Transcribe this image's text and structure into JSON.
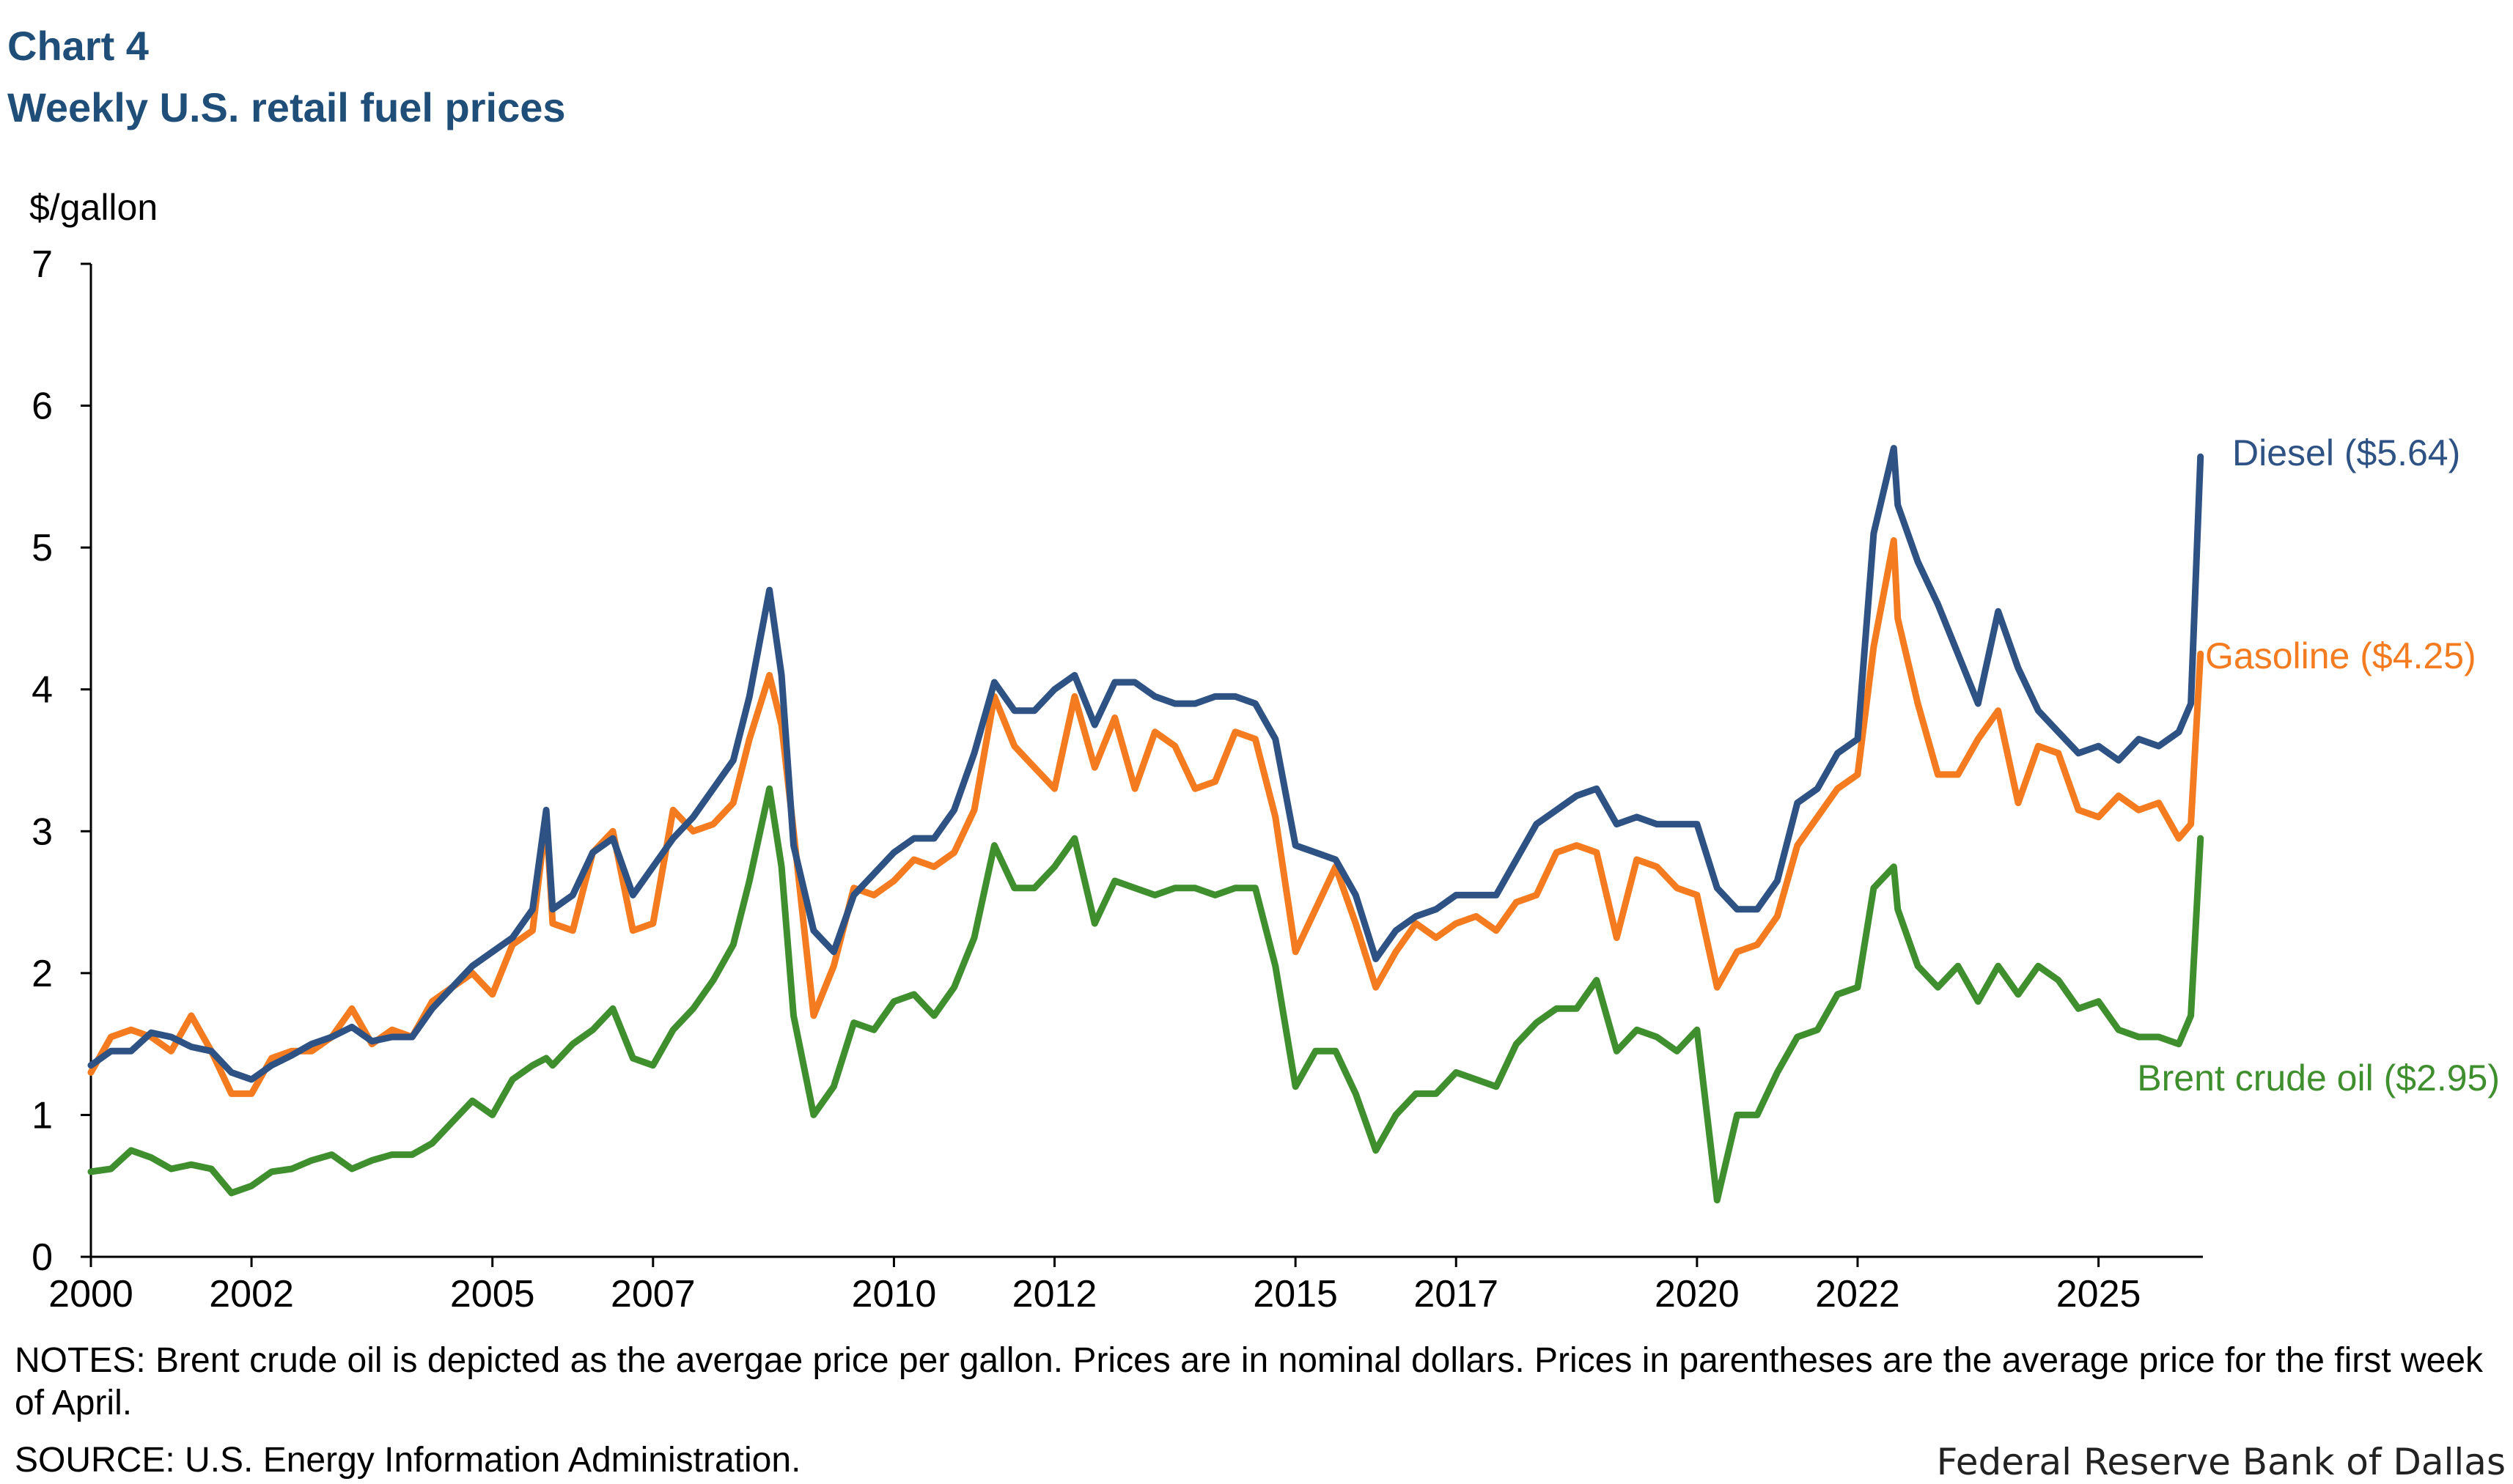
{
  "header": {
    "chart_number": "Chart 4",
    "title": "Weekly U.S. retail fuel prices"
  },
  "chart_data": {
    "type": "line",
    "ylabel": "$/gallon",
    "ylim": [
      0,
      7
    ],
    "yticks": [
      "0",
      "1",
      "2",
      "3",
      "4",
      "5",
      "6",
      "7"
    ],
    "xlim": [
      2000,
      2026.3
    ],
    "xticks": [
      "2000",
      "2002",
      "2005",
      "2007",
      "2010",
      "2012",
      "2015",
      "2017",
      "2020",
      "2022",
      "2025"
    ],
    "grid": false,
    "series": [
      {
        "name": "Diesel ($5.64)",
        "color": "#2e5283",
        "x": [
          2000,
          2000.25,
          2000.5,
          2000.75,
          2001,
          2001.25,
          2001.5,
          2001.75,
          2002,
          2002.25,
          2002.5,
          2002.75,
          2003,
          2003.25,
          2003.5,
          2003.75,
          2004,
          2004.25,
          2004.5,
          2004.75,
          2005,
          2005.25,
          2005.5,
          2005.67,
          2005.75,
          2006,
          2006.25,
          2006.5,
          2006.75,
          2007,
          2007.25,
          2007.5,
          2007.75,
          2008,
          2008.2,
          2008.45,
          2008.6,
          2008.75,
          2009,
          2009.25,
          2009.5,
          2009.75,
          2010,
          2010.25,
          2010.5,
          2010.75,
          2011,
          2011.25,
          2011.5,
          2011.75,
          2012,
          2012.25,
          2012.5,
          2012.75,
          2013,
          2013.25,
          2013.5,
          2013.75,
          2014,
          2014.25,
          2014.5,
          2014.75,
          2015,
          2015.25,
          2015.5,
          2015.75,
          2016,
          2016.25,
          2016.5,
          2016.75,
          2017,
          2017.25,
          2017.5,
          2017.75,
          2018,
          2018.25,
          2018.5,
          2018.75,
          2019,
          2019.25,
          2019.5,
          2019.75,
          2020,
          2020.25,
          2020.5,
          2020.75,
          2021,
          2021.25,
          2021.5,
          2021.75,
          2022,
          2022.2,
          2022.45,
          2022.5,
          2022.75,
          2023,
          2023.25,
          2023.5,
          2023.75,
          2024,
          2024.25,
          2024.5,
          2024.75,
          2025,
          2025.25,
          2025.5,
          2025.75,
          2026,
          2026.15,
          2026.27
        ],
        "values": [
          1.35,
          1.45,
          1.45,
          1.58,
          1.55,
          1.48,
          1.45,
          1.3,
          1.25,
          1.35,
          1.42,
          1.5,
          1.55,
          1.62,
          1.52,
          1.55,
          1.55,
          1.75,
          1.9,
          2.05,
          2.15,
          2.25,
          2.45,
          3.15,
          2.45,
          2.55,
          2.85,
          2.95,
          2.55,
          2.75,
          2.95,
          3.1,
          3.3,
          3.5,
          3.95,
          4.7,
          4.1,
          2.9,
          2.3,
          2.15,
          2.55,
          2.7,
          2.85,
          2.95,
          2.95,
          3.15,
          3.55,
          4.05,
          3.85,
          3.85,
          4.0,
          4.1,
          3.75,
          4.05,
          4.05,
          3.95,
          3.9,
          3.9,
          3.95,
          3.95,
          3.9,
          3.65,
          2.9,
          2.85,
          2.8,
          2.55,
          2.1,
          2.3,
          2.4,
          2.45,
          2.55,
          2.55,
          2.55,
          2.8,
          3.05,
          3.15,
          3.25,
          3.3,
          3.05,
          3.1,
          3.05,
          3.05,
          3.05,
          2.6,
          2.45,
          2.45,
          2.65,
          3.2,
          3.3,
          3.55,
          3.65,
          5.1,
          5.7,
          5.3,
          4.9,
          4.6,
          4.25,
          3.9,
          4.55,
          4.15,
          3.85,
          3.7,
          3.55,
          3.6,
          3.5,
          3.65,
          3.6,
          3.7,
          3.9,
          5.64
        ]
      },
      {
        "name": "Gasoline ($4.25)",
        "color": "#f47b20",
        "x": [
          2000,
          2000.25,
          2000.5,
          2000.75,
          2001,
          2001.25,
          2001.5,
          2001.75,
          2002,
          2002.25,
          2002.5,
          2002.75,
          2003,
          2003.25,
          2003.5,
          2003.75,
          2004,
          2004.25,
          2004.5,
          2004.75,
          2005,
          2005.25,
          2005.5,
          2005.67,
          2005.75,
          2006,
          2006.25,
          2006.5,
          2006.75,
          2007,
          2007.25,
          2007.5,
          2007.75,
          2008,
          2008.2,
          2008.45,
          2008.6,
          2008.75,
          2009,
          2009.25,
          2009.5,
          2009.75,
          2010,
          2010.25,
          2010.5,
          2010.75,
          2011,
          2011.25,
          2011.5,
          2011.75,
          2012,
          2012.25,
          2012.5,
          2012.75,
          2013,
          2013.25,
          2013.5,
          2013.75,
          2014,
          2014.25,
          2014.5,
          2014.75,
          2015,
          2015.25,
          2015.5,
          2015.75,
          2016,
          2016.25,
          2016.5,
          2016.75,
          2017,
          2017.25,
          2017.5,
          2017.75,
          2018,
          2018.25,
          2018.5,
          2018.75,
          2019,
          2019.25,
          2019.5,
          2019.75,
          2020,
          2020.25,
          2020.5,
          2020.75,
          2021,
          2021.25,
          2021.5,
          2021.75,
          2022,
          2022.2,
          2022.45,
          2022.5,
          2022.75,
          2023,
          2023.25,
          2023.5,
          2023.75,
          2024,
          2024.25,
          2024.5,
          2024.75,
          2025,
          2025.25,
          2025.5,
          2025.75,
          2026,
          2026.15,
          2026.27
        ],
        "values": [
          1.3,
          1.55,
          1.6,
          1.55,
          1.45,
          1.7,
          1.45,
          1.15,
          1.15,
          1.4,
          1.45,
          1.45,
          1.55,
          1.75,
          1.5,
          1.6,
          1.55,
          1.8,
          1.9,
          2.0,
          1.85,
          2.2,
          2.3,
          3.1,
          2.35,
          2.3,
          2.85,
          3.0,
          2.3,
          2.35,
          3.15,
          3.0,
          3.05,
          3.2,
          3.65,
          4.1,
          3.75,
          3.0,
          1.7,
          2.05,
          2.6,
          2.55,
          2.65,
          2.8,
          2.75,
          2.85,
          3.15,
          3.95,
          3.6,
          3.45,
          3.3,
          3.95,
          3.45,
          3.8,
          3.3,
          3.7,
          3.6,
          3.3,
          3.35,
          3.7,
          3.65,
          3.1,
          2.15,
          2.45,
          2.75,
          2.35,
          1.9,
          2.15,
          2.35,
          2.25,
          2.35,
          2.4,
          2.3,
          2.5,
          2.55,
          2.85,
          2.9,
          2.85,
          2.25,
          2.8,
          2.75,
          2.6,
          2.55,
          1.9,
          2.15,
          2.2,
          2.4,
          2.9,
          3.1,
          3.3,
          3.4,
          4.3,
          5.05,
          4.5,
          3.9,
          3.4,
          3.4,
          3.65,
          3.85,
          3.2,
          3.6,
          3.55,
          3.15,
          3.1,
          3.25,
          3.15,
          3.2,
          2.95,
          3.05,
          4.25
        ]
      },
      {
        "name": "Brent crude oil ($2.95)",
        "color": "#3f8f2f",
        "x": [
          2000,
          2000.25,
          2000.5,
          2000.75,
          2001,
          2001.25,
          2001.5,
          2001.75,
          2002,
          2002.25,
          2002.5,
          2002.75,
          2003,
          2003.25,
          2003.5,
          2003.75,
          2004,
          2004.25,
          2004.5,
          2004.75,
          2005,
          2005.25,
          2005.5,
          2005.67,
          2005.75,
          2006,
          2006.25,
          2006.5,
          2006.75,
          2007,
          2007.25,
          2007.5,
          2007.75,
          2008,
          2008.2,
          2008.45,
          2008.6,
          2008.75,
          2009,
          2009.25,
          2009.5,
          2009.75,
          2010,
          2010.25,
          2010.5,
          2010.75,
          2011,
          2011.25,
          2011.5,
          2011.75,
          2012,
          2012.25,
          2012.5,
          2012.75,
          2013,
          2013.25,
          2013.5,
          2013.75,
          2014,
          2014.25,
          2014.5,
          2014.75,
          2015,
          2015.25,
          2015.5,
          2015.75,
          2016,
          2016.25,
          2016.5,
          2016.75,
          2017,
          2017.25,
          2017.5,
          2017.75,
          2018,
          2018.25,
          2018.5,
          2018.75,
          2019,
          2019.25,
          2019.5,
          2019.75,
          2020,
          2020.25,
          2020.5,
          2020.75,
          2021,
          2021.25,
          2021.5,
          2021.75,
          2022,
          2022.2,
          2022.45,
          2022.5,
          2022.75,
          2023,
          2023.25,
          2023.5,
          2023.75,
          2024,
          2024.25,
          2024.5,
          2024.75,
          2025,
          2025.25,
          2025.5,
          2025.75,
          2026,
          2026.15,
          2026.27
        ],
        "values": [
          0.6,
          0.62,
          0.75,
          0.7,
          0.62,
          0.65,
          0.62,
          0.45,
          0.5,
          0.6,
          0.62,
          0.68,
          0.72,
          0.62,
          0.68,
          0.72,
          0.72,
          0.8,
          0.95,
          1.1,
          1.0,
          1.25,
          1.35,
          1.4,
          1.35,
          1.5,
          1.6,
          1.75,
          1.4,
          1.35,
          1.6,
          1.75,
          1.95,
          2.2,
          2.65,
          3.3,
          2.75,
          1.7,
          1.0,
          1.2,
          1.65,
          1.6,
          1.8,
          1.85,
          1.7,
          1.9,
          2.25,
          2.9,
          2.6,
          2.6,
          2.75,
          2.95,
          2.35,
          2.65,
          2.6,
          2.55,
          2.6,
          2.6,
          2.55,
          2.6,
          2.6,
          2.05,
          1.2,
          1.45,
          1.45,
          1.15,
          0.75,
          1.0,
          1.15,
          1.15,
          1.3,
          1.25,
          1.2,
          1.5,
          1.65,
          1.75,
          1.75,
          1.95,
          1.45,
          1.6,
          1.55,
          1.45,
          1.6,
          0.4,
          1.0,
          1.0,
          1.3,
          1.55,
          1.6,
          1.85,
          1.9,
          2.6,
          2.75,
          2.45,
          2.05,
          1.9,
          2.05,
          1.8,
          2.05,
          1.85,
          2.05,
          1.95,
          1.75,
          1.8,
          1.6,
          1.55,
          1.55,
          1.5,
          1.7,
          2.95
        ]
      }
    ]
  },
  "footer": {
    "notes": "NOTES: Brent crude oil is depicted as the avergae price per gallon. Prices are in nominal dollars. Prices in parentheses are the average price for the first week of April.",
    "source": "SOURCE: U.S. Energy Information Administration.",
    "credit": "Federal Reserve Bank of Dallas"
  }
}
